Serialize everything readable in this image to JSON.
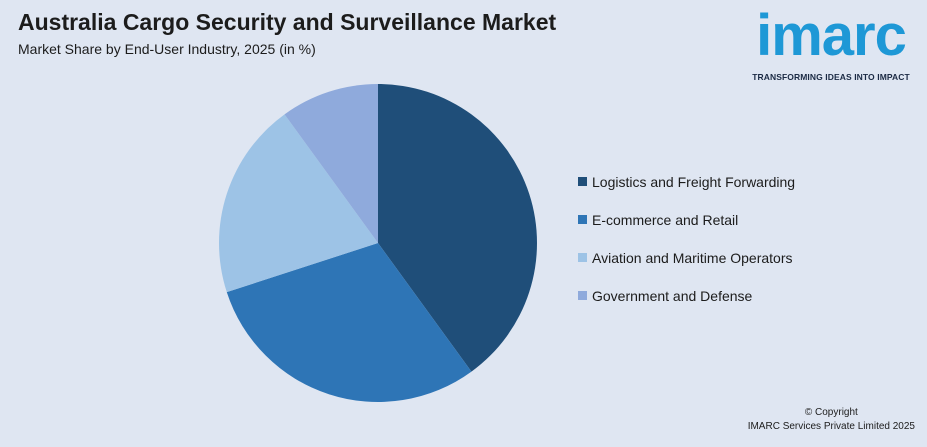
{
  "header": {
    "title": "Australia Cargo Security and Surveillance Market",
    "subtitle": "Market Share by End-User Industry, 2025 (in %)"
  },
  "logo": {
    "word": "imarc",
    "tagline": "TRANSFORMING IDEAS INTO IMPACT"
  },
  "footer": {
    "copyright": "© Copyright",
    "company": "IMARC Services Private Limited 2025"
  },
  "chart_data": {
    "type": "pie",
    "title": "Australia Cargo Security and Surveillance Market",
    "subtitle": "Market Share by End-User Industry, 2025 (in %)",
    "legend_position": "right",
    "slices": [
      {
        "label": "Logistics and Freight Forwarding",
        "value": 40,
        "color": "#1f4e79"
      },
      {
        "label": "E-commerce and Retail",
        "value": 30,
        "color": "#2e75b6"
      },
      {
        "label": "Aviation and Maritime Operators",
        "value": 20,
        "color": "#9dc3e6"
      },
      {
        "label": "Government and Defense",
        "value": 10,
        "color": "#8faadc"
      }
    ]
  }
}
